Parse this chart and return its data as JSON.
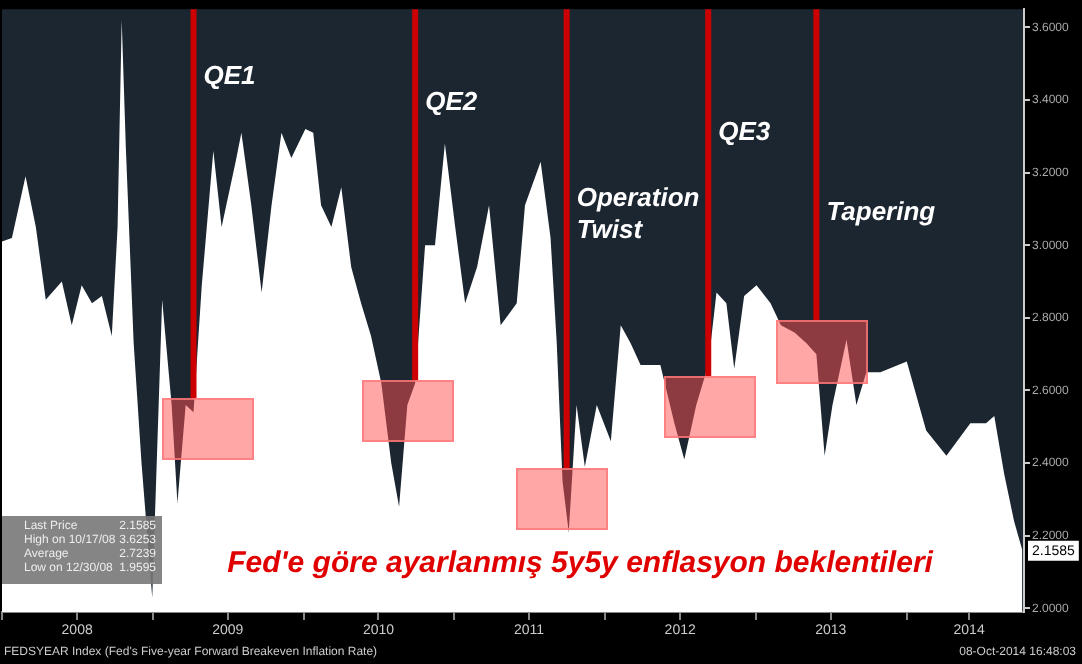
{
  "chart_data": {
    "type": "area",
    "title": "Fed'e göre ayarlanmış 5y5y enflasyon beklentileri",
    "x": [
      "2008-01-01",
      "2008-01-25",
      "2008-02-27",
      "2008-03-23",
      "2008-04-16",
      "2008-05-25",
      "2008-06-18",
      "2008-07-12",
      "2008-08-06",
      "2008-08-30",
      "2008-09-23",
      "2008-10-07",
      "2008-10-17",
      "2008-10-27",
      "2008-11-15",
      "2008-12-04",
      "2008-12-30",
      "2009-01-23",
      "2009-02-15",
      "2009-03-01",
      "2009-03-21",
      "2009-04-09",
      "2009-04-29",
      "2009-05-27",
      "2009-06-16",
      "2009-07-20",
      "2009-08-03",
      "2009-08-27",
      "2009-09-21",
      "2009-10-15",
      "2009-11-08",
      "2009-12-02",
      "2010-01-05",
      "2010-01-24",
      "2010-02-12",
      "2010-03-09",
      "2010-04-02",
      "2010-04-26",
      "2010-05-20",
      "2010-06-13",
      "2010-07-08",
      "2010-08-01",
      "2010-08-20",
      "2010-09-09",
      "2010-09-28",
      "2010-10-22",
      "2010-11-15",
      "2010-12-09",
      "2011-01-03",
      "2011-01-27",
      "2011-02-25",
      "2011-03-26",
      "2011-04-23",
      "2011-06-01",
      "2011-06-21",
      "2011-07-29",
      "2011-08-22",
      "2011-09-06",
      "2011-09-20",
      "2011-10-05",
      "2011-10-24",
      "2011-11-13",
      "2011-12-12",
      "2012-01-15",
      "2012-02-08",
      "2012-03-03",
      "2012-03-27",
      "2012-05-14",
      "2012-06-17",
      "2012-07-11",
      "2012-08-09",
      "2012-09-07",
      "2012-09-27",
      "2012-10-21",
      "2012-11-09",
      "2012-12-03",
      "2013-01-02",
      "2013-02-05",
      "2013-03-02",
      "2013-04-04",
      "2013-05-03",
      "2013-05-27",
      "2013-06-16",
      "2013-07-05",
      "2013-08-08",
      "2013-09-01",
      "2013-09-25",
      "2013-10-29",
      "2014-01-01",
      "2014-02-17",
      "2014-04-07",
      "2014-06-04",
      "2014-07-12",
      "2014-08-01",
      "2014-08-25",
      "2014-09-18",
      "2014-10-08"
    ],
    "series": [
      {
        "color": "#ffffff",
        "values": [
          3.01,
          3.02,
          3.19,
          3.05,
          2.85,
          2.9,
          2.78,
          2.89,
          2.84,
          2.86,
          2.75,
          3.05,
          3.62,
          3.27,
          2.73,
          2.4,
          2.03,
          2.85,
          2.56,
          2.29,
          2.56,
          2.54,
          2.89,
          3.26,
          3.05,
          3.23,
          3.31,
          3.11,
          2.87,
          3.11,
          3.31,
          3.24,
          3.32,
          3.31,
          3.11,
          3.05,
          3.16,
          2.94,
          2.84,
          2.75,
          2.62,
          2.4,
          2.28,
          2.56,
          2.62,
          3.0,
          3.0,
          3.28,
          3.05,
          2.84,
          2.94,
          3.11,
          2.78,
          2.84,
          3.11,
          3.23,
          3.02,
          2.73,
          2.35,
          2.21,
          2.56,
          2.39,
          2.56,
          2.46,
          2.78,
          2.73,
          2.67,
          2.67,
          2.51,
          2.41,
          2.56,
          2.67,
          2.87,
          2.84,
          2.66,
          2.86,
          2.89,
          2.84,
          2.78,
          2.76,
          2.73,
          2.7,
          2.42,
          2.56,
          2.74,
          2.56,
          2.65,
          2.65,
          2.68,
          2.49,
          2.42,
          2.51,
          2.51,
          2.53,
          2.37,
          2.24,
          2.16
        ]
      }
    ],
    "xlim": [
      "2008-01-01",
      "2014-10-12"
    ],
    "xticks": [
      {
        "value": "2008-01-01",
        "label": null
      },
      {
        "value": "2008-07-01",
        "label": "2008"
      },
      {
        "value": "2009-01-01",
        "label": null
      },
      {
        "value": "2009-07-01",
        "label": "2009"
      },
      {
        "value": "2010-01-01",
        "label": null
      },
      {
        "value": "2010-07-01",
        "label": "2010"
      },
      {
        "value": "2011-01-01",
        "label": null
      },
      {
        "value": "2011-07-01",
        "label": "2011"
      },
      {
        "value": "2012-01-01",
        "label": null
      },
      {
        "value": "2012-07-01",
        "label": "2012"
      },
      {
        "value": "2013-01-01",
        "label": null
      },
      {
        "value": "2013-07-01",
        "label": "2013"
      },
      {
        "value": "2014-01-01",
        "label": null
      },
      {
        "value": "2014-06-01",
        "label": "2014"
      }
    ],
    "ylim": [
      1.99,
      3.65
    ],
    "yticks": [
      {
        "value": 2.0,
        "label": "2.0000"
      },
      {
        "value": 2.2,
        "label": "2.2000"
      },
      {
        "value": 2.4,
        "label": "2.4000"
      },
      {
        "value": 2.6,
        "label": "2.6000"
      },
      {
        "value": 2.8,
        "label": "2.8000"
      },
      {
        "value": 3.0,
        "label": "3.0000"
      },
      {
        "value": 3.2,
        "label": "3.2000"
      },
      {
        "value": 3.4,
        "label": "3.4000"
      },
      {
        "value": 3.6,
        "label": "3.6000"
      }
    ],
    "grid": false,
    "ref_lines": [
      {
        "axis": "x",
        "value": "2009-04-09",
        "label": "QE1",
        "color": "#cc0000"
      },
      {
        "axis": "x",
        "value": "2010-09-28",
        "label": "QE2",
        "color": "#cc0000"
      },
      {
        "axis": "x",
        "value": "2011-09-30",
        "label": "Operation Twist",
        "color": "#cc0000"
      },
      {
        "axis": "x",
        "value": "2012-09-07",
        "label": "QE3",
        "color": "#cc0000"
      },
      {
        "axis": "x",
        "value": "2013-05-27",
        "label": "Tapering",
        "color": "#cc0000"
      }
    ],
    "annotations": [
      "FEDSYEAR Index (Fed's Five-year Forward Breakeven Inflation Rate)",
      "08-Oct-2014 16:48:03",
      "Last Price 2.1585",
      "High on 10/17/08 3.6253",
      "Average 2.7239",
      "Low on 12/30/08 1.9595",
      {
        "text": "2.1585",
        "x": "2014-10-08",
        "y": 2.1585
      }
    ]
  }
}
